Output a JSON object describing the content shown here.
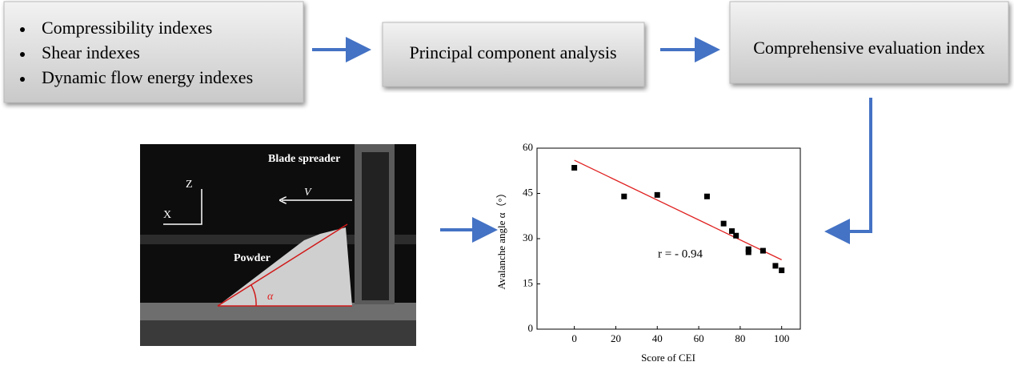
{
  "boxes": [
    {
      "items": [
        "Compressibility indexes",
        "Shear indexes",
        "Dynamic flow energy indexes"
      ]
    },
    {
      "label": "Principal component analysis"
    },
    {
      "label": "Comprehensive evaluation index"
    }
  ],
  "photo": {
    "blade_label": "Blade spreader",
    "z_label": "Z",
    "x_label": "X",
    "v_label": "V",
    "powder_label": "Powder",
    "angle_label": "α"
  },
  "chart_data": {
    "type": "scatter",
    "xlabel": "Score of CEI",
    "ylabel": "Avalanche angle α（°）",
    "annotation": "r = - 0.94",
    "x": [
      0,
      24,
      40,
      64,
      72,
      76,
      78,
      84,
      84,
      91,
      97,
      100
    ],
    "values": [
      53.5,
      44,
      44.5,
      44,
      35,
      32.5,
      31,
      26.5,
      25.5,
      26,
      21,
      19.5
    ],
    "color": "#000000",
    "fit_line": {
      "x": [
        0,
        100
      ],
      "y": [
        56,
        23
      ],
      "color": "#e02020"
    },
    "xlim": [
      -18,
      109
    ],
    "ylim": [
      0,
      60
    ],
    "xticks": [
      0,
      20,
      40,
      60,
      80,
      100
    ],
    "yticks": [
      0,
      15,
      30,
      45,
      60
    ]
  }
}
